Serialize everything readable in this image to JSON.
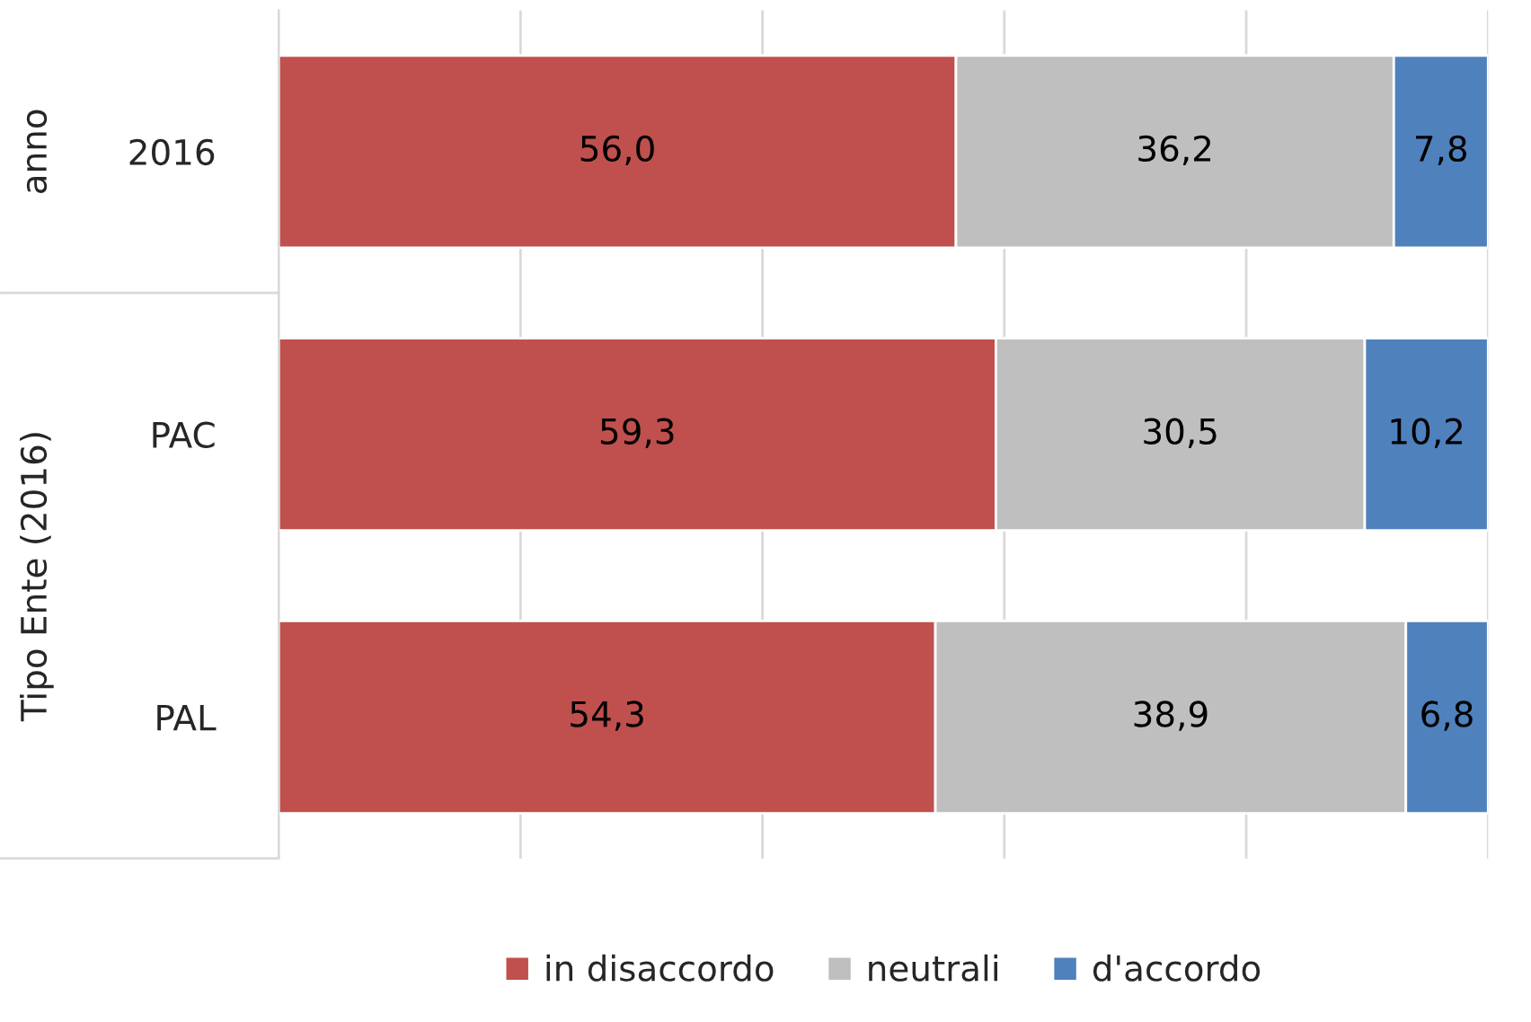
{
  "chart_data": {
    "type": "bar",
    "orientation": "horizontal",
    "stacked": true,
    "categories": [
      "2016",
      "PAC",
      "PAL"
    ],
    "series": [
      {
        "name": "in disaccordo",
        "color": "#c0504d",
        "values": [
          56.0,
          59.3,
          54.3
        ],
        "value_labels": [
          "56,0",
          "59,3",
          "54,3"
        ]
      },
      {
        "name": "neutrali",
        "color": "#bfbfbf",
        "values": [
          36.2,
          30.5,
          38.9
        ],
        "value_labels": [
          "36,2",
          "30,5",
          "38,9"
        ]
      },
      {
        "name": "d'accordo",
        "color": "#4f81bd",
        "values": [
          7.8,
          10.2,
          6.8
        ],
        "value_labels": [
          "7,8",
          "10,2",
          "6,8"
        ]
      }
    ],
    "annotations": [
      "anno",
      "Tipo Ente (2016)"
    ],
    "xlim": [
      0,
      100
    ],
    "xticks": [
      {
        "value": 0,
        "label": null
      },
      {
        "value": 20,
        "label": null
      },
      {
        "value": 40,
        "label": null
      },
      {
        "value": 60,
        "label": null
      },
      {
        "value": 80,
        "label": null
      },
      {
        "value": 100,
        "label": null
      }
    ],
    "grid": "x",
    "tick_labels": "y",
    "legend": "bottom"
  }
}
